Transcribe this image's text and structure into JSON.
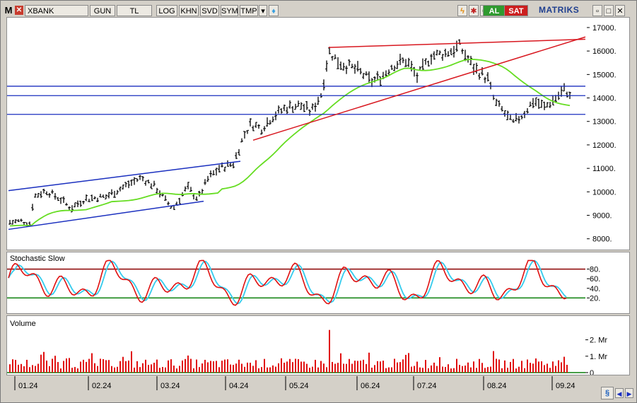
{
  "toolbar": {
    "app_icon": "M",
    "symbol": "XBANK",
    "period": "GUN",
    "currency": "TL",
    "buttons": [
      "LOG",
      "KHN",
      "SVD",
      "SYM",
      "TMP"
    ],
    "buy_label": "AL",
    "sell_label": "SAT",
    "brand": "MATRIKS"
  },
  "price_panel": {
    "y_ticks": [
      "17000.",
      "16000.",
      "15000.",
      "14000.",
      "13000.",
      "12000.",
      "11000.",
      "10000.",
      "9000.",
      "8000."
    ]
  },
  "stoch_panel": {
    "title": "Stochastic Slow",
    "y_ticks": [
      "80.",
      "60.",
      "40.",
      "20."
    ]
  },
  "volume_panel": {
    "title": "Volume",
    "y_ticks": [
      "2. Mr",
      "1. Mr",
      "0"
    ]
  },
  "x_axis": {
    "labels": [
      "01.24",
      "02.24",
      "03.24",
      "04.24",
      "05.24",
      "06.24",
      "07.24",
      "08.24",
      "09.24"
    ]
  },
  "colors": {
    "price_bars": "#000000",
    "moving_average": "#66dd22",
    "trendline_red": "#d8171f",
    "trendline_blue": "#1a2fbf",
    "stoch_k": "#e01010",
    "stoch_d": "#33ccee",
    "stoch_upper": "#8b0000",
    "stoch_lower": "#0a7f0a",
    "volume_bars": "#e01010"
  },
  "chart_data": [
    {
      "type": "line",
      "subtype": "ohlc-bars",
      "title": "",
      "x": [
        "01.24",
        "02.24",
        "03.24",
        "04.24",
        "05.24",
        "06.24",
        "07.24",
        "08.24",
        "09.24"
      ],
      "series": [
        {
          "values": [
            8750,
            9800,
            9600,
            11500,
            13500,
            14700,
            15900,
            13700,
            14200
          ]
        }
      ],
      "ylim": [
        7600,
        17300
      ],
      "grid": false,
      "horizontal_levels": [
        14500,
        14100,
        13300
      ]
    },
    {
      "type": "line",
      "title": "Stochastic Slow",
      "ylim": [
        0,
        100
      ],
      "reference_lines": [
        80,
        20
      ]
    },
    {
      "type": "bar",
      "title": "Volume",
      "ylim": [
        0,
        2500000000
      ],
      "max_value": 2600000000
    }
  ]
}
